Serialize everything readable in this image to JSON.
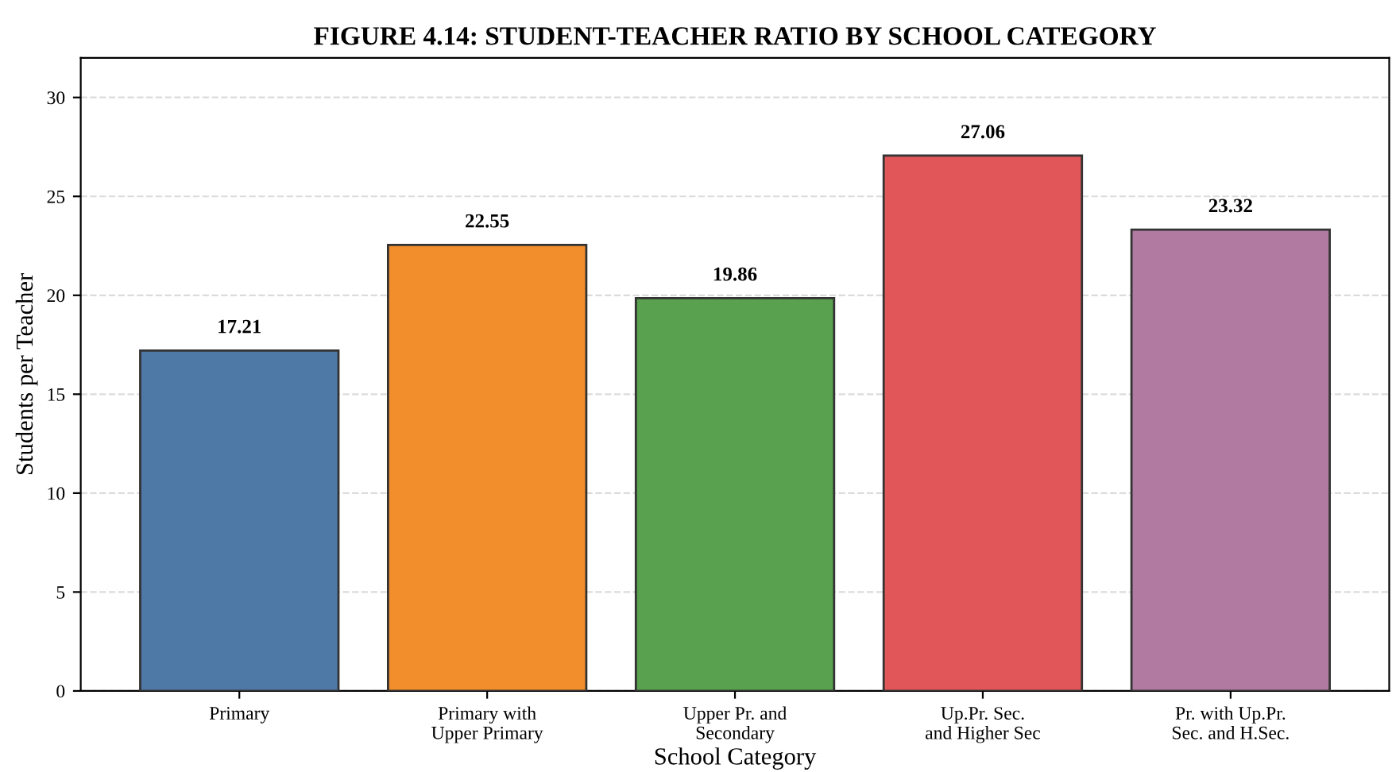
{
  "chart_data": {
    "type": "bar",
    "title": "FIGURE 4.14: STUDENT-TEACHER RATIO BY SCHOOL CATEGORY",
    "xlabel": "School Category",
    "ylabel": "Students per Teacher",
    "categories": [
      "Primary",
      "Primary with\nUpper Primary",
      "Upper Pr. and\nSecondary",
      "Up.Pr. Sec.\nand Higher Sec",
      "Pr. with Up.Pr.\nSec. and H.Sec."
    ],
    "values": [
      17.21,
      22.55,
      19.86,
      27.06,
      23.32
    ],
    "colors": [
      "#4e79a7",
      "#f28e2b",
      "#59a14f",
      "#e15759",
      "#b07aa1"
    ],
    "ylim": [
      0,
      32
    ],
    "yticks": [
      0,
      5,
      10,
      15,
      20,
      25,
      30
    ],
    "grid": "y",
    "data_labels": true
  }
}
